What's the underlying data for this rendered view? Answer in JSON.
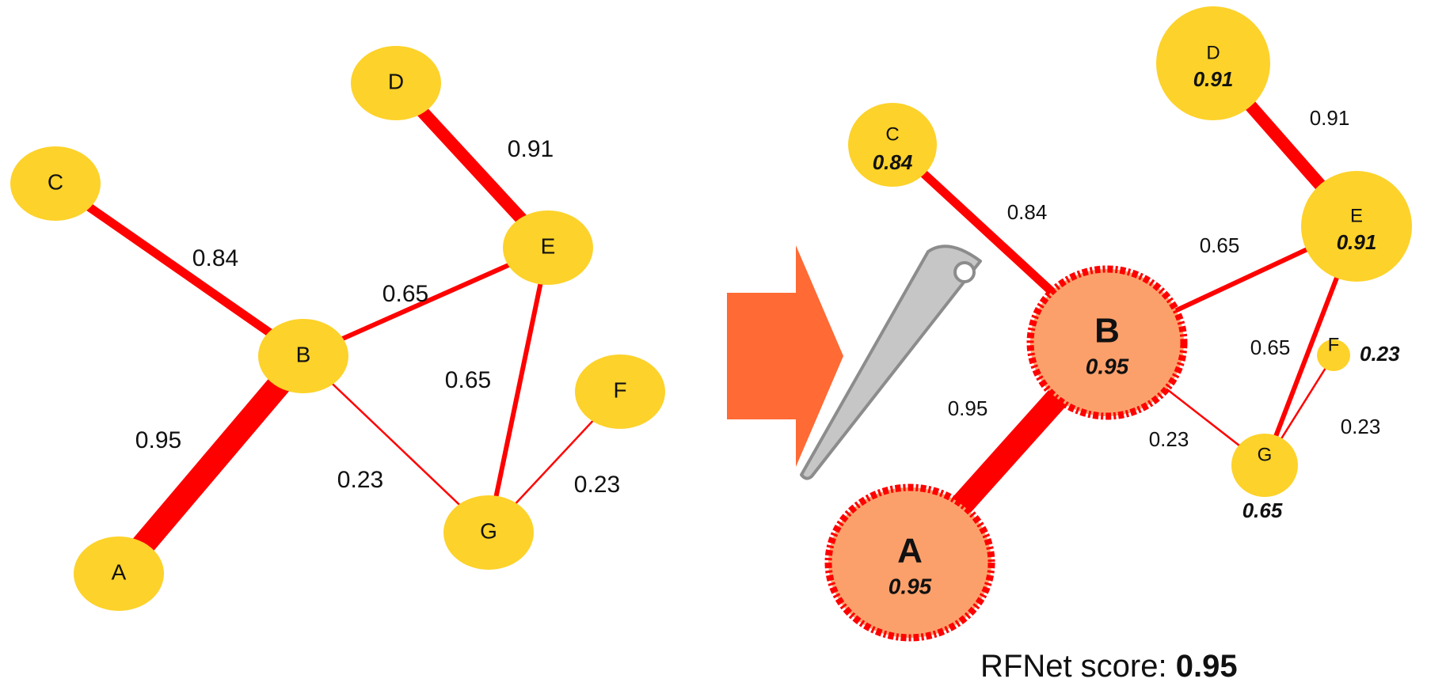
{
  "colors": {
    "node_fill": "#fdd22a",
    "selected_fill": "#fca06b",
    "edge": "#ff0000",
    "arrow": "#ff6a35",
    "needle_fill": "#c6c6c6",
    "needle_stroke": "#8c8c8c"
  },
  "left_graph": {
    "nodes": [
      {
        "id": "A",
        "label": "A"
      },
      {
        "id": "B",
        "label": "B"
      },
      {
        "id": "C",
        "label": "C"
      },
      {
        "id": "D",
        "label": "D"
      },
      {
        "id": "E",
        "label": "E"
      },
      {
        "id": "F",
        "label": "F"
      },
      {
        "id": "G",
        "label": "G"
      }
    ],
    "edges": [
      {
        "from": "A",
        "to": "B",
        "weight": 0.95,
        "label": "0.95"
      },
      {
        "from": "C",
        "to": "B",
        "weight": 0.84,
        "label": "0.84"
      },
      {
        "from": "D",
        "to": "E",
        "weight": 0.91,
        "label": "0.91"
      },
      {
        "from": "B",
        "to": "E",
        "weight": 0.65,
        "label": "0.65"
      },
      {
        "from": "E",
        "to": "G",
        "weight": 0.65,
        "label": "0.65"
      },
      {
        "from": "B",
        "to": "G",
        "weight": 0.23,
        "label": "0.23"
      },
      {
        "from": "F",
        "to": "G",
        "weight": 0.23,
        "label": "0.23"
      }
    ]
  },
  "right_graph": {
    "nodes": [
      {
        "id": "A",
        "label": "A",
        "score": "0.95",
        "selected": true
      },
      {
        "id": "B",
        "label": "B",
        "score": "0.95",
        "selected": true
      },
      {
        "id": "C",
        "label": "C",
        "score": "0.84",
        "selected": false
      },
      {
        "id": "D",
        "label": "D",
        "score": "0.91",
        "selected": false
      },
      {
        "id": "E",
        "label": "E",
        "score": "0.91",
        "selected": false
      },
      {
        "id": "F",
        "label": "F",
        "score": "0.23",
        "selected": false
      },
      {
        "id": "G",
        "label": "G",
        "score": "0.65",
        "selected": false
      }
    ],
    "edges": [
      {
        "from": "A",
        "to": "B",
        "weight": 0.95,
        "label": "0.95"
      },
      {
        "from": "C",
        "to": "B",
        "weight": 0.84,
        "label": "0.84"
      },
      {
        "from": "D",
        "to": "E",
        "weight": 0.91,
        "label": "0.91"
      },
      {
        "from": "B",
        "to": "E",
        "weight": 0.65,
        "label": "0.65"
      },
      {
        "from": "E",
        "to": "G",
        "weight": 0.65,
        "label": "0.65"
      },
      {
        "from": "B",
        "to": "G",
        "weight": 0.23,
        "label": "0.23"
      },
      {
        "from": "F",
        "to": "G",
        "weight": 0.23,
        "label": "0.23"
      }
    ]
  },
  "score": {
    "label": "RFNet score: ",
    "value": "0.95"
  }
}
